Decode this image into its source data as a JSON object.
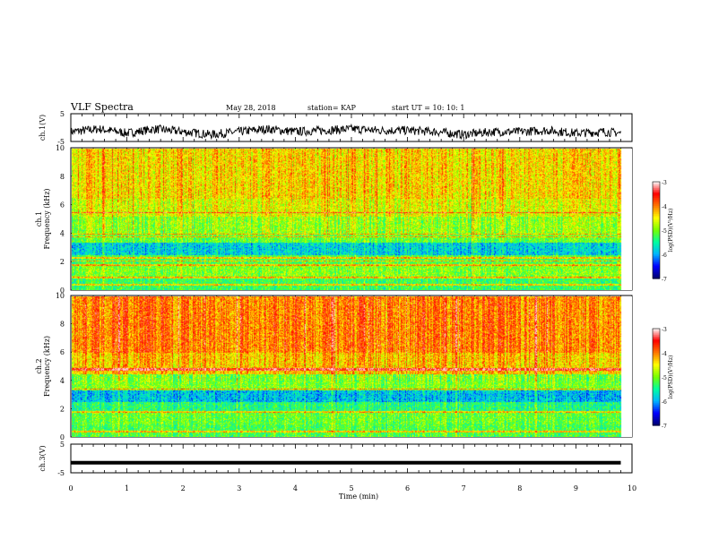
{
  "header": {
    "title": "VLF Spectra",
    "date": "May 28, 2018",
    "station": "station= KAP",
    "start": "start  UT  =    10: 10: 1"
  },
  "colorbar": {
    "label": "log(PSD)(V²/Hz)",
    "ticks": [
      "-3",
      "-4",
      "-5",
      "-6",
      "-7"
    ],
    "colors": [
      "#000080",
      "#0000ff",
      "#00c0ff",
      "#00ff80",
      "#7fff00",
      "#ffff00",
      "#ff8000",
      "#ff0000",
      "#ffffff"
    ]
  },
  "x_axis": {
    "label": "Time  (min)",
    "ticks": [
      "0",
      "1",
      "2",
      "3",
      "4",
      "5",
      "6",
      "7",
      "8",
      "9",
      "10"
    ]
  },
  "chart_data": [
    {
      "type": "line",
      "ylabel": "ch.1(V)",
      "ytick_labels": [
        "5",
        "-5"
      ],
      "ylim": [
        -5,
        5
      ],
      "xlim": [
        0,
        10
      ],
      "x": [
        0,
        0.5,
        1,
        1.5,
        2,
        2.5,
        3,
        3.5,
        4,
        4.5,
        5,
        5.5,
        6,
        6.5,
        7,
        7.5,
        8,
        8.5,
        9,
        9.5,
        9.8
      ],
      "values": [
        -1.5,
        -0.5,
        -2.0,
        -0.5,
        -1.5,
        -2.5,
        -1.5,
        -0.5,
        -1.5,
        -1.0,
        -0.5,
        -1.0,
        -1.0,
        -1.5,
        -2.5,
        -1.5,
        -1.5,
        -1.0,
        -2.0,
        -1.5,
        -2.0
      ]
    },
    {
      "type": "heatmap",
      "ylabel": "ch.1\nFrequency  (kHz)",
      "ytick_labels": [
        "0",
        "2",
        "4",
        "6",
        "8",
        "10"
      ],
      "ylim": [
        0,
        10
      ],
      "xlim": [
        0,
        10
      ],
      "data_end_min": 9.8,
      "bands": [
        {
          "from": 0,
          "to": 0.9,
          "log_psd": -5.3
        },
        {
          "from": 0.9,
          "to": 1.8,
          "log_psd": -5.0
        },
        {
          "from": 1.8,
          "to": 2.5,
          "log_psd": -5.2
        },
        {
          "from": 2.5,
          "to": 3.4,
          "log_psd": -5.8
        },
        {
          "from": 3.4,
          "to": 4.0,
          "log_psd": -5.1
        },
        {
          "from": 4.0,
          "to": 5.2,
          "log_psd": -4.9
        },
        {
          "from": 5.2,
          "to": 6.5,
          "log_psd": -4.6
        },
        {
          "from": 6.5,
          "to": 10,
          "log_psd": -4.4
        }
      ],
      "tone_lines_khz": [
        0.4,
        0.9,
        1.8,
        2.1,
        2.3,
        3.8,
        4.0,
        5.5
      ]
    },
    {
      "type": "heatmap",
      "ylabel": "ch.2\nFrequency  (kHz)",
      "ytick_labels": [
        "0",
        "2",
        "4",
        "6",
        "8",
        "10"
      ],
      "ylim": [
        0,
        10
      ],
      "xlim": [
        0,
        10
      ],
      "data_end_min": 9.8,
      "bands": [
        {
          "from": 0,
          "to": 0.9,
          "log_psd": -5.2
        },
        {
          "from": 0.9,
          "to": 1.8,
          "log_psd": -5.1
        },
        {
          "from": 1.8,
          "to": 2.5,
          "log_psd": -5.4
        },
        {
          "from": 2.5,
          "to": 3.4,
          "log_psd": -5.9
        },
        {
          "from": 3.4,
          "to": 4.5,
          "log_psd": -5.0
        },
        {
          "from": 4.5,
          "to": 6.0,
          "log_psd": -4.3
        },
        {
          "from": 6.0,
          "to": 10,
          "log_psd": -4.0
        }
      ],
      "tone_lines_khz": [
        0.4,
        1.8,
        3.4,
        4.8,
        4.9
      ]
    },
    {
      "type": "line",
      "ylabel": "ch.3(V)",
      "ytick_labels": [
        "5",
        "-5"
      ],
      "ylim": [
        -5,
        5
      ],
      "xlim": [
        0,
        10
      ],
      "x": [
        0,
        9.8
      ],
      "values": [
        -1.5,
        -1.5
      ]
    }
  ]
}
